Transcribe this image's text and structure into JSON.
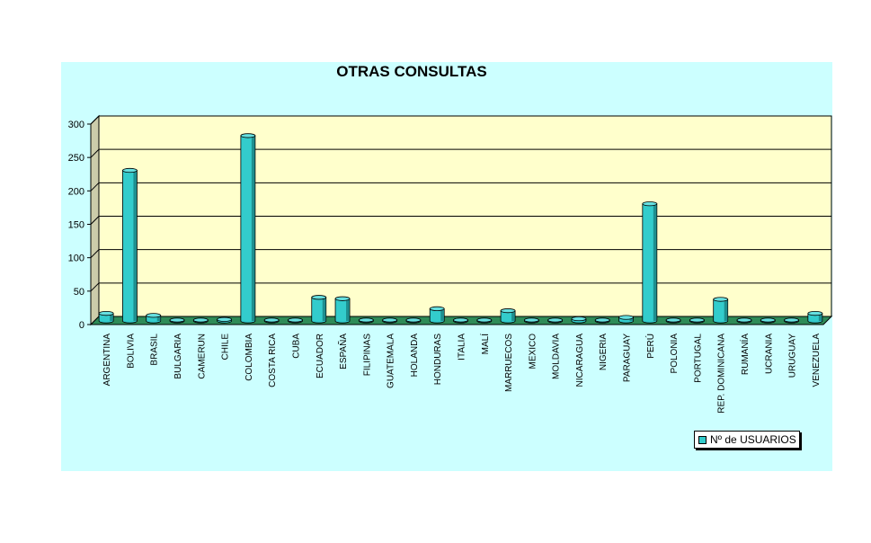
{
  "colors": {
    "bar": "#33cccc",
    "bar_side": "#1e8f8f",
    "bar_top": "#66e0e0",
    "plot_bg": "#ffffcc",
    "floor": "#2e8b57",
    "chart_bg": "#ccffff"
  },
  "chart_data": {
    "type": "bar",
    "title": "OTRAS CONSULTAS",
    "ylim": [
      0,
      300
    ],
    "yticks": [
      "0",
      "50",
      "100",
      "150",
      "200",
      "250",
      "300"
    ],
    "grid": true,
    "legend_position": "bottom-right",
    "categories": [
      "ARGENTINA",
      "BOLIVIA",
      "BRASIL",
      "BULGARIA",
      "CAMERUN",
      "CHILE",
      "COLOMBIA",
      "COSTA RICA",
      "CUBA",
      "ECUADOR",
      "ESPAÑA",
      "FILIPINAS",
      "GUATEMALA",
      "HOLANDA",
      "HONDURAS",
      "ITALIA",
      "MALÍ",
      "MARRUECOS",
      "MEXICO",
      "MOLDAVIA",
      "NICARAGUA",
      "NIGERIA",
      "PARAGUAY",
      "PERÚ",
      "POLONIA",
      "PORTUGAL",
      "REP. DOMINICANA",
      "RUMANÍA",
      "UCRANIA",
      "URUGUAY",
      "VENEZUELA"
    ],
    "series": [
      {
        "name": "Nº de USUARIOS",
        "values": [
          14,
          228,
          11,
          0,
          1,
          5,
          280,
          0,
          0,
          38,
          36,
          0,
          2,
          0,
          21,
          1,
          0,
          18,
          1,
          0,
          6,
          0,
          8,
          178,
          0,
          2,
          35,
          1,
          1,
          0,
          14
        ]
      }
    ]
  }
}
